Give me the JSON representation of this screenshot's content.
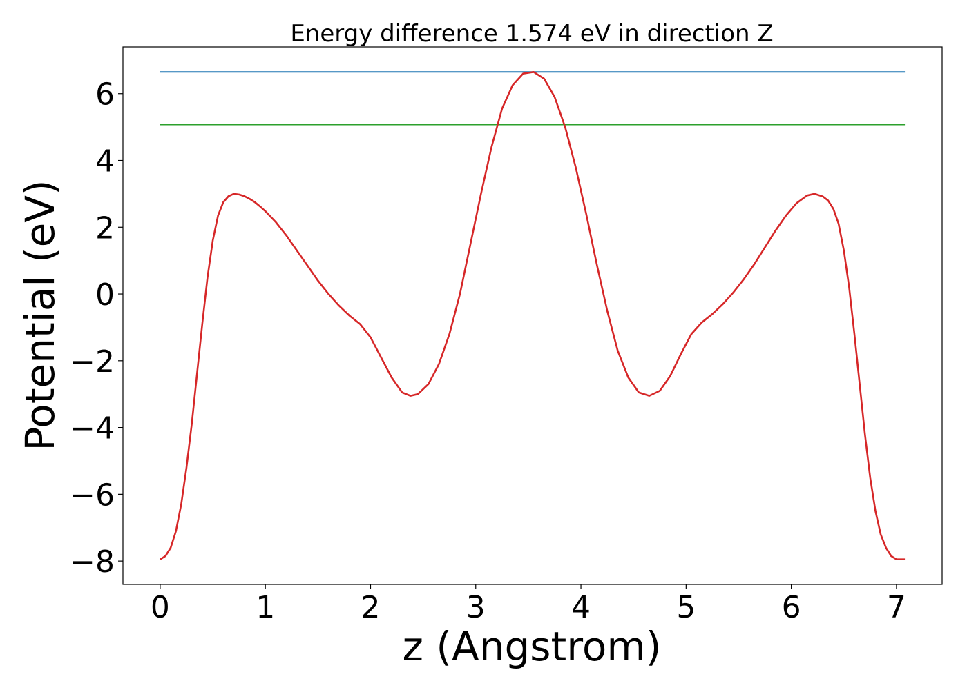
{
  "chart_data": {
    "type": "line",
    "title": "Energy difference 1.574 eV in direction Z",
    "xlabel": "z (Angstrom)",
    "ylabel": "Potential (eV)",
    "xlim": [
      -0.354,
      7.434
    ],
    "ylim": [
      -8.7,
      7.4
    ],
    "xticks": [
      0,
      1,
      2,
      3,
      4,
      5,
      6,
      7
    ],
    "yticks": [
      -8,
      -6,
      -4,
      -2,
      0,
      2,
      4,
      6
    ],
    "xtick_labels": [
      "0",
      "1",
      "2",
      "3",
      "4",
      "5",
      "6",
      "7"
    ],
    "ytick_labels": [
      "−8",
      "−6",
      "−4",
      "−2",
      "0",
      "2",
      "4",
      "6"
    ],
    "grid": false,
    "legend": "none",
    "series": [
      {
        "color": "#d62728",
        "x": [
          0,
          0.05,
          0.1,
          0.15,
          0.2,
          0.25,
          0.3,
          0.35,
          0.4,
          0.45,
          0.5,
          0.55,
          0.6,
          0.65,
          0.7,
          0.75,
          0.8,
          0.85,
          0.9,
          0.95,
          1.0,
          1.1,
          1.2,
          1.3,
          1.4,
          1.5,
          1.6,
          1.7,
          1.8,
          1.9,
          2.0,
          2.1,
          2.2,
          2.3,
          2.38,
          2.45,
          2.55,
          2.65,
          2.75,
          2.85,
          2.95,
          3.05,
          3.15,
          3.25,
          3.35,
          3.45,
          3.55,
          3.65,
          3.75,
          3.85,
          3.95,
          4.05,
          4.15,
          4.25,
          4.35,
          4.45,
          4.55,
          4.65,
          4.75,
          4.85,
          4.95,
          5.05,
          5.15,
          5.25,
          5.35,
          5.45,
          5.55,
          5.65,
          5.75,
          5.85,
          5.95,
          6.05,
          6.15,
          6.22,
          6.3,
          6.35,
          6.4,
          6.45,
          6.5,
          6.55,
          6.6,
          6.65,
          6.7,
          6.75,
          6.8,
          6.85,
          6.9,
          6.95,
          7.0,
          7.05,
          7.08
        ],
        "y": [
          -7.95,
          -7.85,
          -7.6,
          -7.1,
          -6.3,
          -5.2,
          -3.9,
          -2.4,
          -0.9,
          0.5,
          1.6,
          2.35,
          2.75,
          2.93,
          3.0,
          2.98,
          2.93,
          2.85,
          2.75,
          2.62,
          2.48,
          2.15,
          1.75,
          1.3,
          0.85,
          0.4,
          0.0,
          -0.35,
          -0.65,
          -0.9,
          -1.3,
          -1.9,
          -2.5,
          -2.95,
          -3.05,
          -3.0,
          -2.7,
          -2.1,
          -1.2,
          0.0,
          1.5,
          3.0,
          4.4,
          5.55,
          6.25,
          6.6,
          6.65,
          6.45,
          5.9,
          5.0,
          3.8,
          2.4,
          0.9,
          -0.5,
          -1.7,
          -2.5,
          -2.95,
          -3.05,
          -2.9,
          -2.45,
          -1.8,
          -1.2,
          -0.85,
          -0.6,
          -0.3,
          0.05,
          0.45,
          0.9,
          1.4,
          1.9,
          2.35,
          2.72,
          2.95,
          3.0,
          2.92,
          2.8,
          2.55,
          2.1,
          1.3,
          0.2,
          -1.2,
          -2.7,
          -4.2,
          -5.5,
          -6.5,
          -7.2,
          -7.6,
          -7.85,
          -7.95,
          -7.95,
          -7.95
        ]
      },
      {
        "color": "#1f77b4",
        "x": [
          0,
          7.08
        ],
        "y": [
          6.65,
          6.65
        ]
      },
      {
        "color": "#2ca02c",
        "x": [
          0,
          7.08
        ],
        "y": [
          5.076,
          5.076
        ]
      }
    ]
  }
}
